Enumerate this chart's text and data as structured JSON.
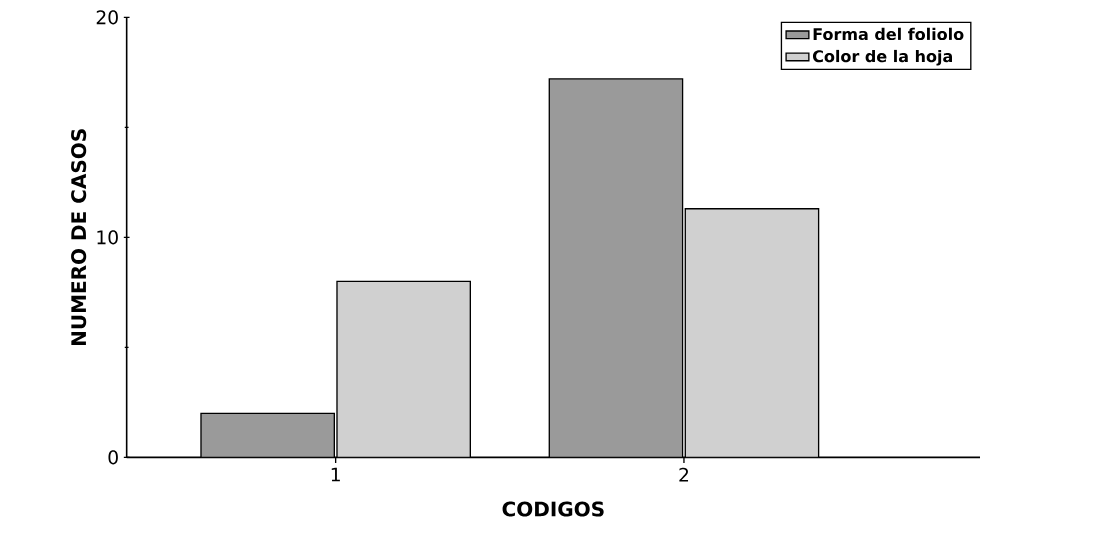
{
  "chart_data": {
    "type": "bar",
    "xlabel": "CODIGOS",
    "ylabel": "NUMERO DE CASOS",
    "categories": [
      "1",
      "2"
    ],
    "series": [
      {
        "name": "Forma del foliolo",
        "color": "#9a9a9a",
        "values": [
          2,
          17.2
        ]
      },
      {
        "name": "Color de la hoja",
        "color": "#d0d0d0",
        "values": [
          8,
          11.3
        ]
      }
    ],
    "ylim": [
      0,
      20
    ],
    "yticks": [
      0,
      10,
      20
    ],
    "grid": false,
    "legend": "top right"
  }
}
